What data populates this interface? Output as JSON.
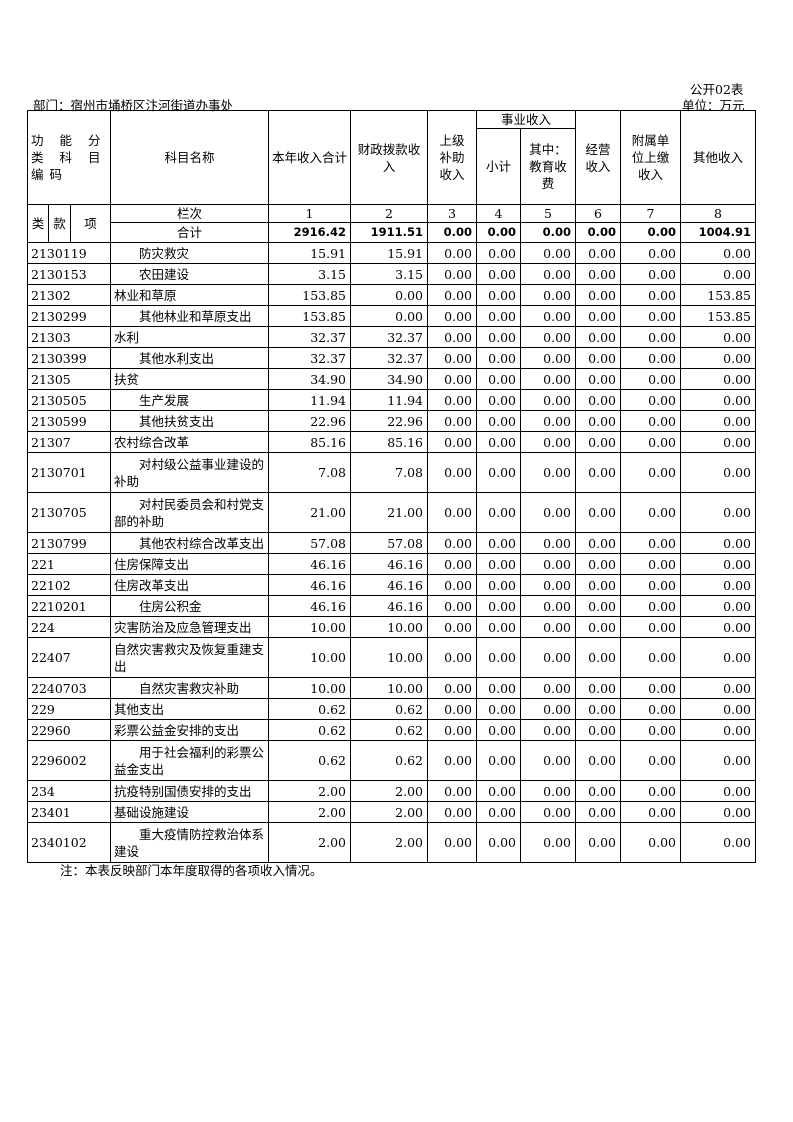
{
  "form_no": "公开02表",
  "unit": "单位：万元",
  "department": "部门：宿州市埇桥区汴河街道办事处",
  "headers": {
    "code": "功 能 分 类 科 目 编码",
    "name": "科目名称",
    "c1": "本年收入合计",
    "c2": "财政拨款收入",
    "c3": "上级补助收入",
    "biz": "事业收入",
    "c4": "小计",
    "c5": "其中：教育收费",
    "c6": "经营收入",
    "c7": "附属单位上缴收入",
    "c8": "其他收入",
    "lei": "类",
    "kuan": "款",
    "xiang": "项",
    "lanci": "栏次",
    "col_nums": [
      "1",
      "2",
      "3",
      "4",
      "5",
      "6",
      "7",
      "8"
    ]
  },
  "total": {
    "label": "合计",
    "values": [
      "2916.42",
      "1911.51",
      "0.00",
      "0.00",
      "0.00",
      "0.00",
      "0.00",
      "1004.91"
    ]
  },
  "rows": [
    {
      "code": "2130119",
      "name": "防灾救灾",
      "indent": 2,
      "values": [
        "15.91",
        "15.91",
        "0.00",
        "0.00",
        "0.00",
        "0.00",
        "0.00",
        "0.00"
      ]
    },
    {
      "code": "2130153",
      "name": "农田建设",
      "indent": 2,
      "values": [
        "3.15",
        "3.15",
        "0.00",
        "0.00",
        "0.00",
        "0.00",
        "0.00",
        "0.00"
      ]
    },
    {
      "code": "21302",
      "name": "林业和草原",
      "indent": 0,
      "values": [
        "153.85",
        "0.00",
        "0.00",
        "0.00",
        "0.00",
        "0.00",
        "0.00",
        "153.85"
      ]
    },
    {
      "code": "2130299",
      "name": "其他林业和草原支出",
      "indent": 2,
      "values": [
        "153.85",
        "0.00",
        "0.00",
        "0.00",
        "0.00",
        "0.00",
        "0.00",
        "153.85"
      ]
    },
    {
      "code": "21303",
      "name": "水利",
      "indent": 0,
      "values": [
        "32.37",
        "32.37",
        "0.00",
        "0.00",
        "0.00",
        "0.00",
        "0.00",
        "0.00"
      ]
    },
    {
      "code": "2130399",
      "name": "其他水利支出",
      "indent": 2,
      "values": [
        "32.37",
        "32.37",
        "0.00",
        "0.00",
        "0.00",
        "0.00",
        "0.00",
        "0.00"
      ]
    },
    {
      "code": "21305",
      "name": "扶贫",
      "indent": 0,
      "values": [
        "34.90",
        "34.90",
        "0.00",
        "0.00",
        "0.00",
        "0.00",
        "0.00",
        "0.00"
      ]
    },
    {
      "code": "2130505",
      "name": "生产发展",
      "indent": 2,
      "values": [
        "11.94",
        "11.94",
        "0.00",
        "0.00",
        "0.00",
        "0.00",
        "0.00",
        "0.00"
      ]
    },
    {
      "code": "2130599",
      "name": "其他扶贫支出",
      "indent": 2,
      "values": [
        "22.96",
        "22.96",
        "0.00",
        "0.00",
        "0.00",
        "0.00",
        "0.00",
        "0.00"
      ]
    },
    {
      "code": "21307",
      "name": "农村综合改革",
      "indent": 0,
      "values": [
        "85.16",
        "85.16",
        "0.00",
        "0.00",
        "0.00",
        "0.00",
        "0.00",
        "0.00"
      ]
    },
    {
      "code": "2130701",
      "name": "对村级公益事业建设的补助",
      "indent": 2,
      "tall": true,
      "values": [
        "7.08",
        "7.08",
        "0.00",
        "0.00",
        "0.00",
        "0.00",
        "0.00",
        "0.00"
      ]
    },
    {
      "code": "2130705",
      "name": "对村民委员会和村党支部的补助",
      "indent": 2,
      "tall": true,
      "values": [
        "21.00",
        "21.00",
        "0.00",
        "0.00",
        "0.00",
        "0.00",
        "0.00",
        "0.00"
      ]
    },
    {
      "code": "2130799",
      "name": "其他农村综合改革支出",
      "indent": 2,
      "values": [
        "57.08",
        "57.08",
        "0.00",
        "0.00",
        "0.00",
        "0.00",
        "0.00",
        "0.00"
      ]
    },
    {
      "code": "221",
      "name": "住房保障支出",
      "indent": 0,
      "values": [
        "46.16",
        "46.16",
        "0.00",
        "0.00",
        "0.00",
        "0.00",
        "0.00",
        "0.00"
      ]
    },
    {
      "code": "22102",
      "name": "住房改革支出",
      "indent": 0,
      "values": [
        "46.16",
        "46.16",
        "0.00",
        "0.00",
        "0.00",
        "0.00",
        "0.00",
        "0.00"
      ]
    },
    {
      "code": "2210201",
      "name": "住房公积金",
      "indent": 2,
      "values": [
        "46.16",
        "46.16",
        "0.00",
        "0.00",
        "0.00",
        "0.00",
        "0.00",
        "0.00"
      ]
    },
    {
      "code": "224",
      "name": "灾害防治及应急管理支出",
      "indent": 0,
      "values": [
        "10.00",
        "10.00",
        "0.00",
        "0.00",
        "0.00",
        "0.00",
        "0.00",
        "0.00"
      ]
    },
    {
      "code": "22407",
      "name": "自然灾害救灾及恢复重建支出",
      "indent": 0,
      "tall": true,
      "values": [
        "10.00",
        "10.00",
        "0.00",
        "0.00",
        "0.00",
        "0.00",
        "0.00",
        "0.00"
      ]
    },
    {
      "code": "2240703",
      "name": "自然灾害救灾补助",
      "indent": 2,
      "values": [
        "10.00",
        "10.00",
        "0.00",
        "0.00",
        "0.00",
        "0.00",
        "0.00",
        "0.00"
      ]
    },
    {
      "code": "229",
      "name": "其他支出",
      "indent": 0,
      "values": [
        "0.62",
        "0.62",
        "0.00",
        "0.00",
        "0.00",
        "0.00",
        "0.00",
        "0.00"
      ]
    },
    {
      "code": "22960",
      "name": "彩票公益金安排的支出",
      "indent": 0,
      "values": [
        "0.62",
        "0.62",
        "0.00",
        "0.00",
        "0.00",
        "0.00",
        "0.00",
        "0.00"
      ]
    },
    {
      "code": "2296002",
      "name": "用于社会福利的彩票公益金支出",
      "indent": 2,
      "tall": true,
      "values": [
        "0.62",
        "0.62",
        "0.00",
        "0.00",
        "0.00",
        "0.00",
        "0.00",
        "0.00"
      ]
    },
    {
      "code": "234",
      "name": "抗疫特别国债安排的支出",
      "indent": 0,
      "values": [
        "2.00",
        "2.00",
        "0.00",
        "0.00",
        "0.00",
        "0.00",
        "0.00",
        "0.00"
      ]
    },
    {
      "code": "23401",
      "name": "基础设施建设",
      "indent": 0,
      "values": [
        "2.00",
        "2.00",
        "0.00",
        "0.00",
        "0.00",
        "0.00",
        "0.00",
        "0.00"
      ]
    },
    {
      "code": "2340102",
      "name": "重大疫情防控救治体系建设",
      "indent": 2,
      "tall": true,
      "values": [
        "2.00",
        "2.00",
        "0.00",
        "0.00",
        "0.00",
        "0.00",
        "0.00",
        "0.00"
      ]
    }
  ],
  "note": "注：本表反映部门本年度取得的各项收入情况。"
}
